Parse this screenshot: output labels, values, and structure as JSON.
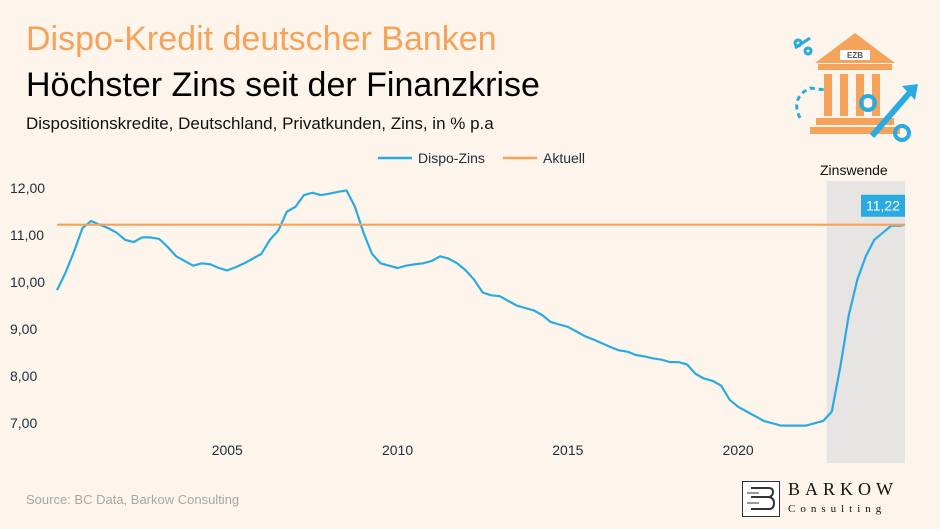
{
  "header": {
    "title_line1": "Dispo-Kredit deutscher Banken",
    "title_line2": "Höchster Zins seit der Finanzkrise",
    "subtitle": "Dispositionskredite, Deutschland, Privatkunden, Zins, in % p.a"
  },
  "footer": {
    "source": "Source: BC Data, Barkow Consulting",
    "logo_word1": "BARKOW",
    "logo_word2": "Consulting"
  },
  "illustration": {
    "icon": "central-bank-interest-rate-icon",
    "sign_text": "EZB",
    "caption": "Zinswende"
  },
  "colors": {
    "series_line": "#29abe2",
    "current_line": "#f5a25a",
    "highlight_band": "#e6e5e3",
    "value_badge": "#29abe2",
    "axis_text": "#1f2d3d"
  },
  "chart_data": {
    "type": "line",
    "title": "",
    "xlabel": "",
    "ylabel": "",
    "xlim": [
      2000.0,
      2024.9
    ],
    "ylim": [
      6.75,
      12.15
    ],
    "x_ticks": [
      2005,
      2010,
      2015,
      2020
    ],
    "x_tick_labels": [
      "2005",
      "2010",
      "2015",
      "2020"
    ],
    "y_ticks": [
      7,
      8,
      9,
      10,
      11,
      12
    ],
    "y_tick_labels": [
      "7,00",
      "8,00",
      "9,00",
      "10,00",
      "11,00",
      "12,00"
    ],
    "legend_position": "top-center",
    "highlight_region": {
      "x_from": 2022.6,
      "x_to": 2024.9,
      "label": "Zinswende"
    },
    "series": [
      {
        "name": "Dispo-Zins",
        "x": [
          2000.0,
          2000.25,
          2000.5,
          2000.75,
          2001.0,
          2001.25,
          2001.5,
          2001.75,
          2002.0,
          2002.25,
          2002.5,
          2002.75,
          2003.0,
          2003.25,
          2003.5,
          2003.75,
          2004.0,
          2004.25,
          2004.5,
          2004.75,
          2005.0,
          2005.25,
          2005.5,
          2005.75,
          2006.0,
          2006.25,
          2006.5,
          2006.75,
          2007.0,
          2007.25,
          2007.5,
          2007.75,
          2008.0,
          2008.25,
          2008.5,
          2008.75,
          2009.0,
          2009.25,
          2009.5,
          2009.75,
          2010.0,
          2010.25,
          2010.5,
          2010.75,
          2011.0,
          2011.25,
          2011.5,
          2011.75,
          2012.0,
          2012.25,
          2012.5,
          2012.75,
          2013.0,
          2013.25,
          2013.5,
          2013.75,
          2014.0,
          2014.25,
          2014.5,
          2014.75,
          2015.0,
          2015.25,
          2015.5,
          2015.75,
          2016.0,
          2016.25,
          2016.5,
          2016.75,
          2017.0,
          2017.25,
          2017.5,
          2017.75,
          2018.0,
          2018.25,
          2018.5,
          2018.75,
          2019.0,
          2019.25,
          2019.5,
          2019.75,
          2020.0,
          2020.25,
          2020.5,
          2020.75,
          2021.0,
          2021.25,
          2021.5,
          2021.75,
          2022.0,
          2022.25,
          2022.5,
          2022.75,
          2023.0,
          2023.25,
          2023.5,
          2023.75,
          2024.0,
          2024.25,
          2024.5,
          2024.75,
          2024.9
        ],
        "y": [
          9.83,
          10.2,
          10.65,
          11.15,
          11.3,
          11.22,
          11.15,
          11.05,
          10.9,
          10.85,
          10.95,
          10.95,
          10.92,
          10.75,
          10.55,
          10.45,
          10.35,
          10.4,
          10.38,
          10.3,
          10.25,
          10.32,
          10.4,
          10.5,
          10.6,
          10.9,
          11.1,
          11.5,
          11.6,
          11.85,
          11.9,
          11.85,
          11.88,
          11.92,
          11.95,
          11.6,
          11.05,
          10.6,
          10.4,
          10.35,
          10.3,
          10.35,
          10.38,
          10.4,
          10.45,
          10.55,
          10.5,
          10.4,
          10.25,
          10.05,
          9.78,
          9.72,
          9.7,
          9.6,
          9.5,
          9.45,
          9.4,
          9.3,
          9.15,
          9.1,
          9.05,
          8.95,
          8.85,
          8.78,
          8.7,
          8.62,
          8.55,
          8.52,
          8.45,
          8.42,
          8.38,
          8.35,
          8.3,
          8.3,
          8.25,
          8.05,
          7.95,
          7.9,
          7.8,
          7.5,
          7.35,
          7.25,
          7.15,
          7.05,
          7.0,
          6.95,
          6.95,
          6.95,
          6.95,
          7.0,
          7.05,
          7.25,
          8.2,
          9.3,
          10.05,
          10.55,
          10.9,
          11.05,
          11.2,
          11.2,
          11.22
        ]
      },
      {
        "name": "Aktuell",
        "x": [
          2000.0,
          2024.9
        ],
        "y": [
          11.22,
          11.22
        ]
      }
    ],
    "annotation": {
      "x": 2024.9,
      "y": 11.22,
      "text": "11,22"
    }
  }
}
